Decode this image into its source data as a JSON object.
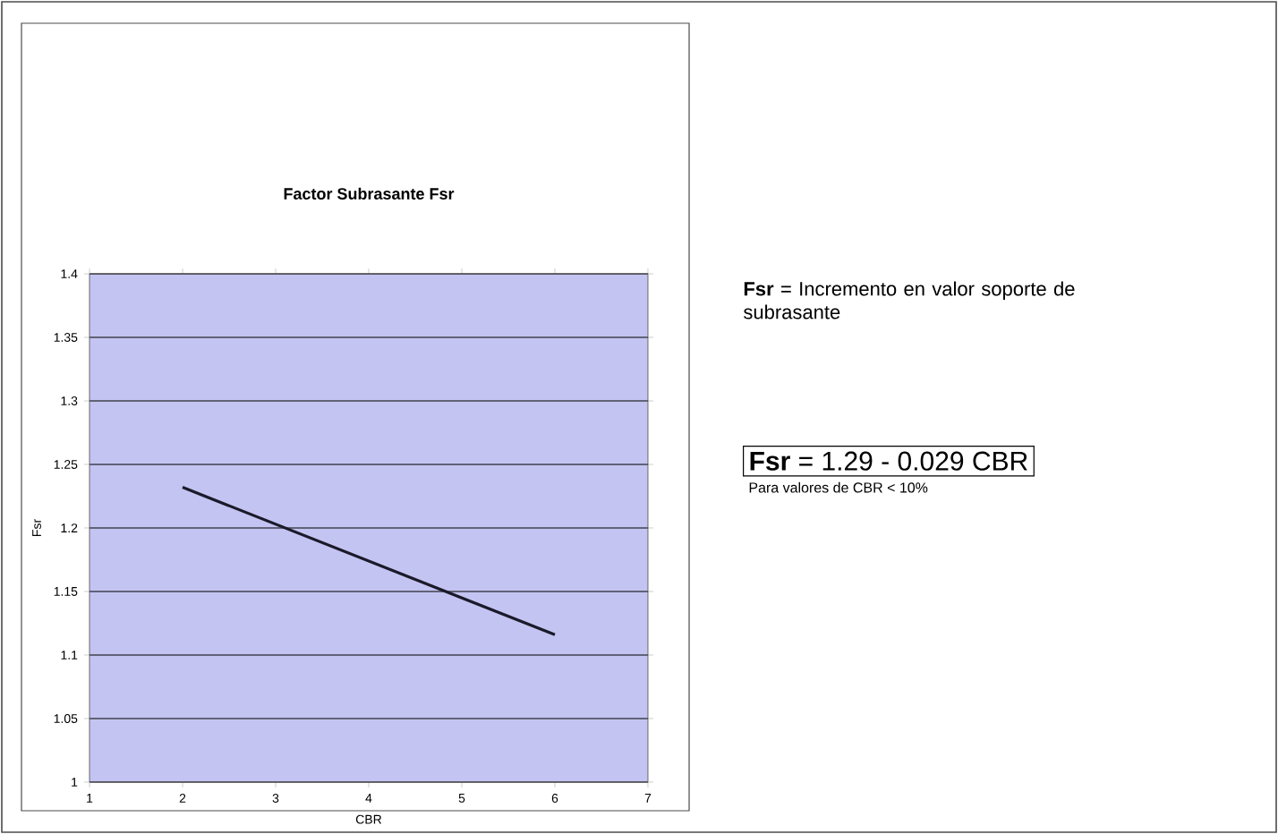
{
  "chart_data": {
    "type": "line",
    "title": "Factor Subrasante Fsr",
    "xlabel": "CBR",
    "ylabel": "Fsr",
    "x": [
      2,
      6
    ],
    "series": [
      {
        "color": "#1a1a2a",
        "values": [
          1.232,
          1.116
        ]
      }
    ],
    "xlim": [
      1,
      7
    ],
    "xticks": [
      1,
      2,
      3,
      4,
      5,
      6,
      7
    ],
    "ylim": [
      1,
      1.4
    ],
    "yticks": [
      1,
      1.05,
      1.1,
      1.15,
      1.2,
      1.25,
      1.3,
      1.35,
      1.4
    ],
    "grid": "y",
    "marker": "none",
    "line_style": "solid",
    "annotations": [
      "**Fsr** = Incremento en valor soporte de subrasante",
      "**Fsr** = 1.29 - 0.029 CBR",
      "Para valores de CBR < 10%"
    ]
  }
}
